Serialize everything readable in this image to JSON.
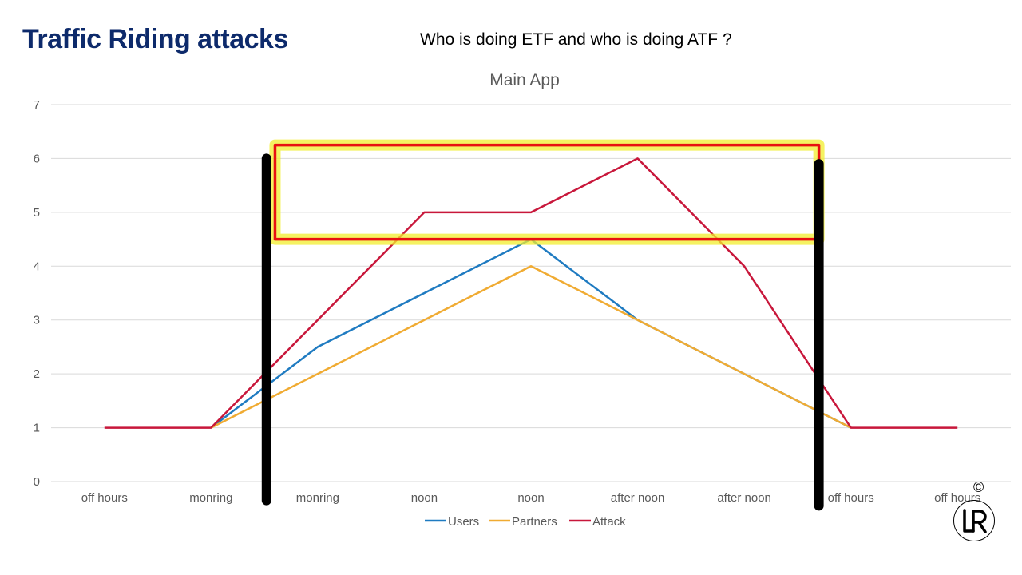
{
  "slide": {
    "title": "Traffic Riding attacks",
    "subtitle": "Who is doing ETF and who is doing ATF ?",
    "copyright": "©"
  },
  "chart_data": {
    "type": "line",
    "title": "Main App",
    "categories": [
      "off hours",
      "monring",
      "monring",
      "noon",
      "noon",
      "after noon",
      "after noon",
      "off hours",
      "off hours"
    ],
    "ylim": [
      0,
      7
    ],
    "yticks": [
      0,
      1,
      2,
      3,
      4,
      5,
      6,
      7
    ],
    "grid": true,
    "legend": "bottom",
    "series": [
      {
        "name": "Users",
        "color": "#1f7bc1",
        "values": [
          null,
          1,
          2.5,
          3.5,
          4.5,
          3,
          2,
          1,
          null
        ]
      },
      {
        "name": "Partners",
        "color": "#f0ab32",
        "values": [
          null,
          1,
          2,
          3,
          4,
          3,
          2,
          1,
          null
        ]
      },
      {
        "name": "Attack",
        "color": "#c8173b",
        "values": [
          1,
          1,
          3,
          5,
          5,
          6,
          4,
          1,
          1
        ]
      }
    ],
    "annotations": {
      "highlight_box": {
        "x_from": 1.6,
        "x_to": 6.7,
        "y_from": 4.5,
        "y_to": 6.25,
        "stroke": "#e81010",
        "glow": "#f2ee2c"
      },
      "vertical_bars": [
        {
          "x": 1.52,
          "y_from": -0.35,
          "y_to": 6,
          "color": "#000000"
        },
        {
          "x": 6.7,
          "y_from": -0.45,
          "y_to": 5.9,
          "color": "#000000"
        }
      ]
    }
  }
}
